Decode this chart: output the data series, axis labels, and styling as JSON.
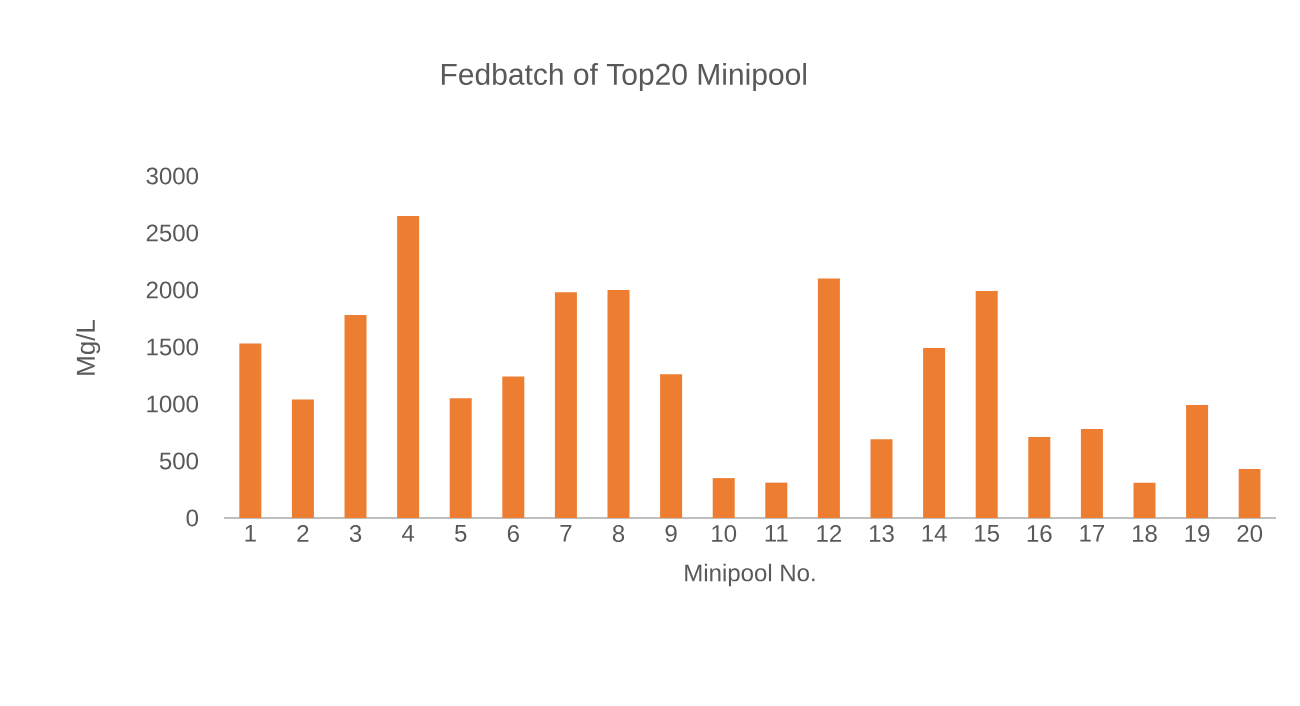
{
  "chart_data": {
    "type": "bar",
    "title": "Fedbatch of Top20 Minipool",
    "xlabel": "Minipool No.",
    "ylabel": "Mg/L",
    "categories": [
      "1",
      "2",
      "3",
      "4",
      "5",
      "6",
      "7",
      "8",
      "9",
      "10",
      "11",
      "12",
      "13",
      "14",
      "15",
      "16",
      "17",
      "18",
      "19",
      "20"
    ],
    "values": [
      1530,
      1040,
      1780,
      2650,
      1050,
      1240,
      1980,
      2000,
      1260,
      350,
      310,
      2100,
      690,
      1490,
      1990,
      710,
      780,
      310,
      990,
      430
    ],
    "color": "#ed7d31",
    "ylim": [
      0,
      3000
    ],
    "yticks": [
      0,
      500,
      1000,
      1500,
      2000,
      2500,
      3000
    ],
    "legend": false
  }
}
